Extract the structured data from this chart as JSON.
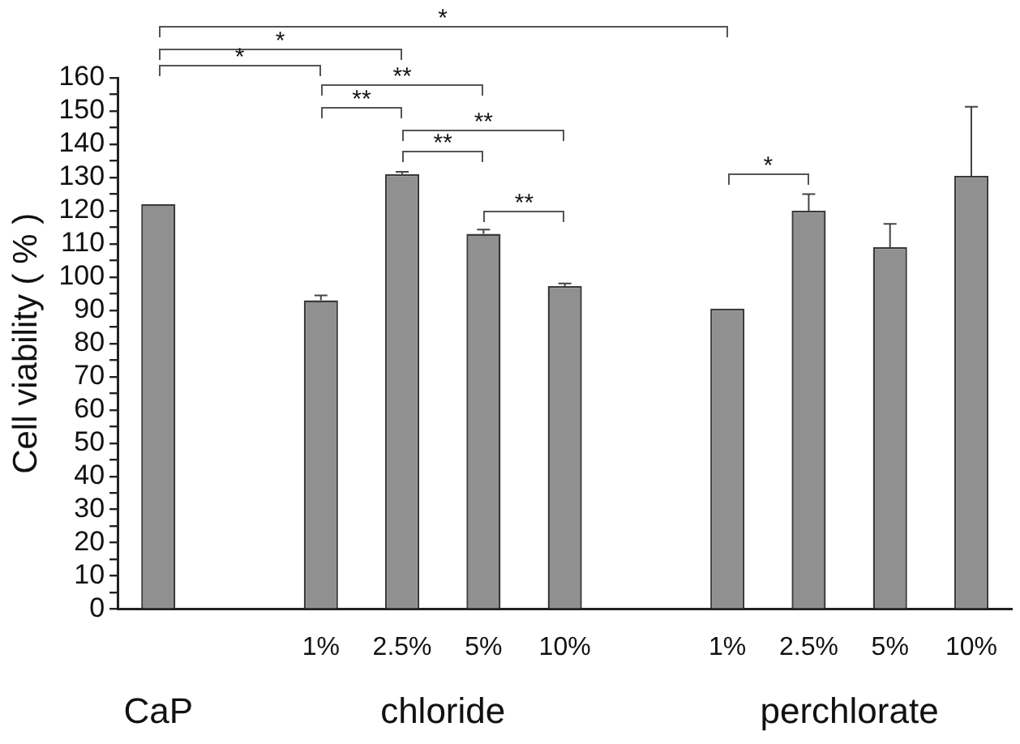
{
  "chart_data": {
    "type": "bar",
    "ylabel": "Cell viability ( % )",
    "categories": [
      null,
      null,
      "1%",
      "2.5%",
      "5%",
      "10%",
      null,
      "1%",
      "2.5%",
      "5%",
      "10%"
    ],
    "values": [
      122,
      null,
      93,
      131,
      113,
      97.3,
      null,
      90.5,
      120,
      109,
      130.5
    ],
    "errors": [
      null,
      null,
      [
        93,
        94.5
      ],
      [
        131,
        131.7
      ],
      [
        113,
        114.3
      ],
      [
        97.3,
        98.1
      ],
      null,
      null,
      [
        120,
        125
      ],
      [
        109,
        116
      ],
      [
        130.5,
        151.3
      ]
    ],
    "color": "#909090",
    "ylim": [
      0,
      160
    ],
    "yticks": [
      0,
      {
        "value": 5,
        "label": null
      },
      10,
      {
        "value": 15,
        "label": null
      },
      20,
      {
        "value": 25,
        "label": null
      },
      30,
      {
        "value": 35,
        "label": null
      },
      40,
      {
        "value": 45,
        "label": null
      },
      50,
      {
        "value": 55,
        "label": null
      },
      60,
      {
        "value": 65,
        "label": null
      },
      70,
      {
        "value": 75,
        "label": null
      },
      80,
      {
        "value": 85,
        "label": null
      },
      90,
      {
        "value": 95,
        "label": null
      },
      100,
      {
        "value": 105,
        "label": null
      },
      110,
      {
        "value": 115,
        "label": null
      },
      120,
      {
        "value": 125,
        "label": null
      },
      130,
      {
        "value": 135,
        "label": null
      },
      140,
      {
        "value": 145,
        "label": null
      },
      150,
      {
        "value": 155,
        "label": null
      },
      160
    ],
    "grid": false,
    "legend": false,
    "annotations": [
      "*",
      "*",
      "*",
      "**",
      "**",
      "**",
      "**",
      "**",
      "*",
      "CaP",
      "chloride",
      "perchlorate"
    ]
  }
}
